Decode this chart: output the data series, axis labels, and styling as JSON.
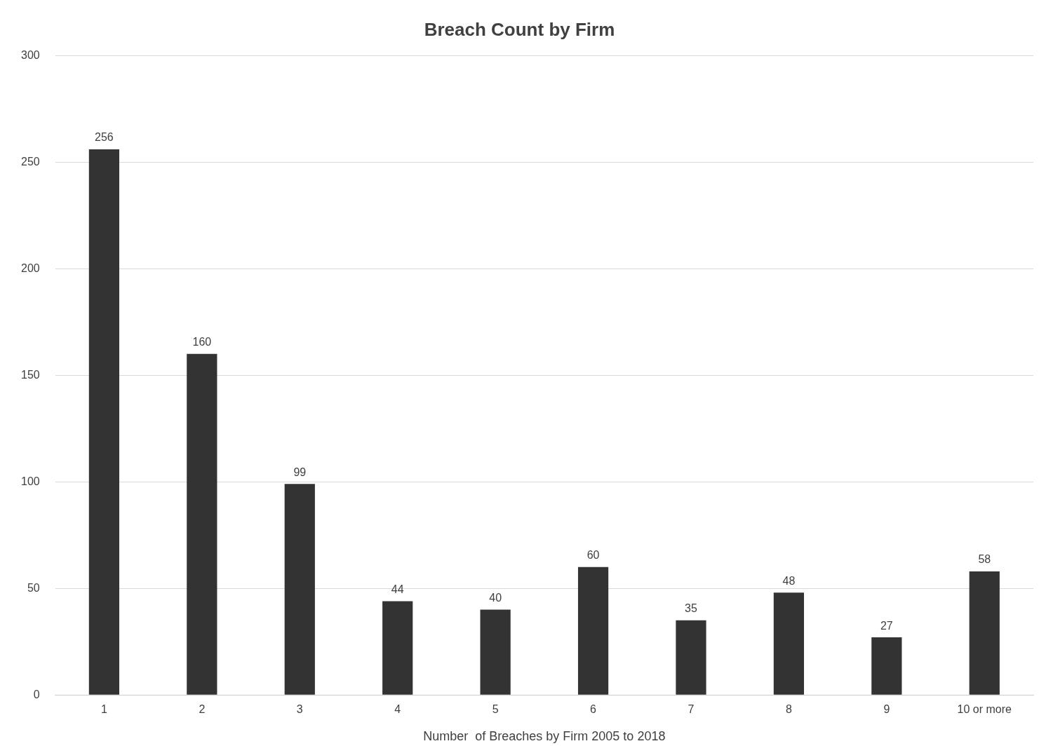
{
  "chart_data": {
    "type": "bar",
    "title": "Breach Count by Firm",
    "xlabel": "Number  of Breaches by Firm 2005 to 2018",
    "categories": [
      "1",
      "2",
      "3",
      "4",
      "5",
      "6",
      "7",
      "8",
      "9",
      "10 or more"
    ],
    "values": [
      256,
      160,
      99,
      44,
      40,
      60,
      35,
      48,
      27,
      58
    ],
    "color": "#333333",
    "ylim": [
      0,
      300
    ],
    "yticks": [
      0,
      50,
      100,
      150,
      200,
      250,
      300
    ],
    "grid": "y",
    "data_labels": true,
    "legend": false
  }
}
